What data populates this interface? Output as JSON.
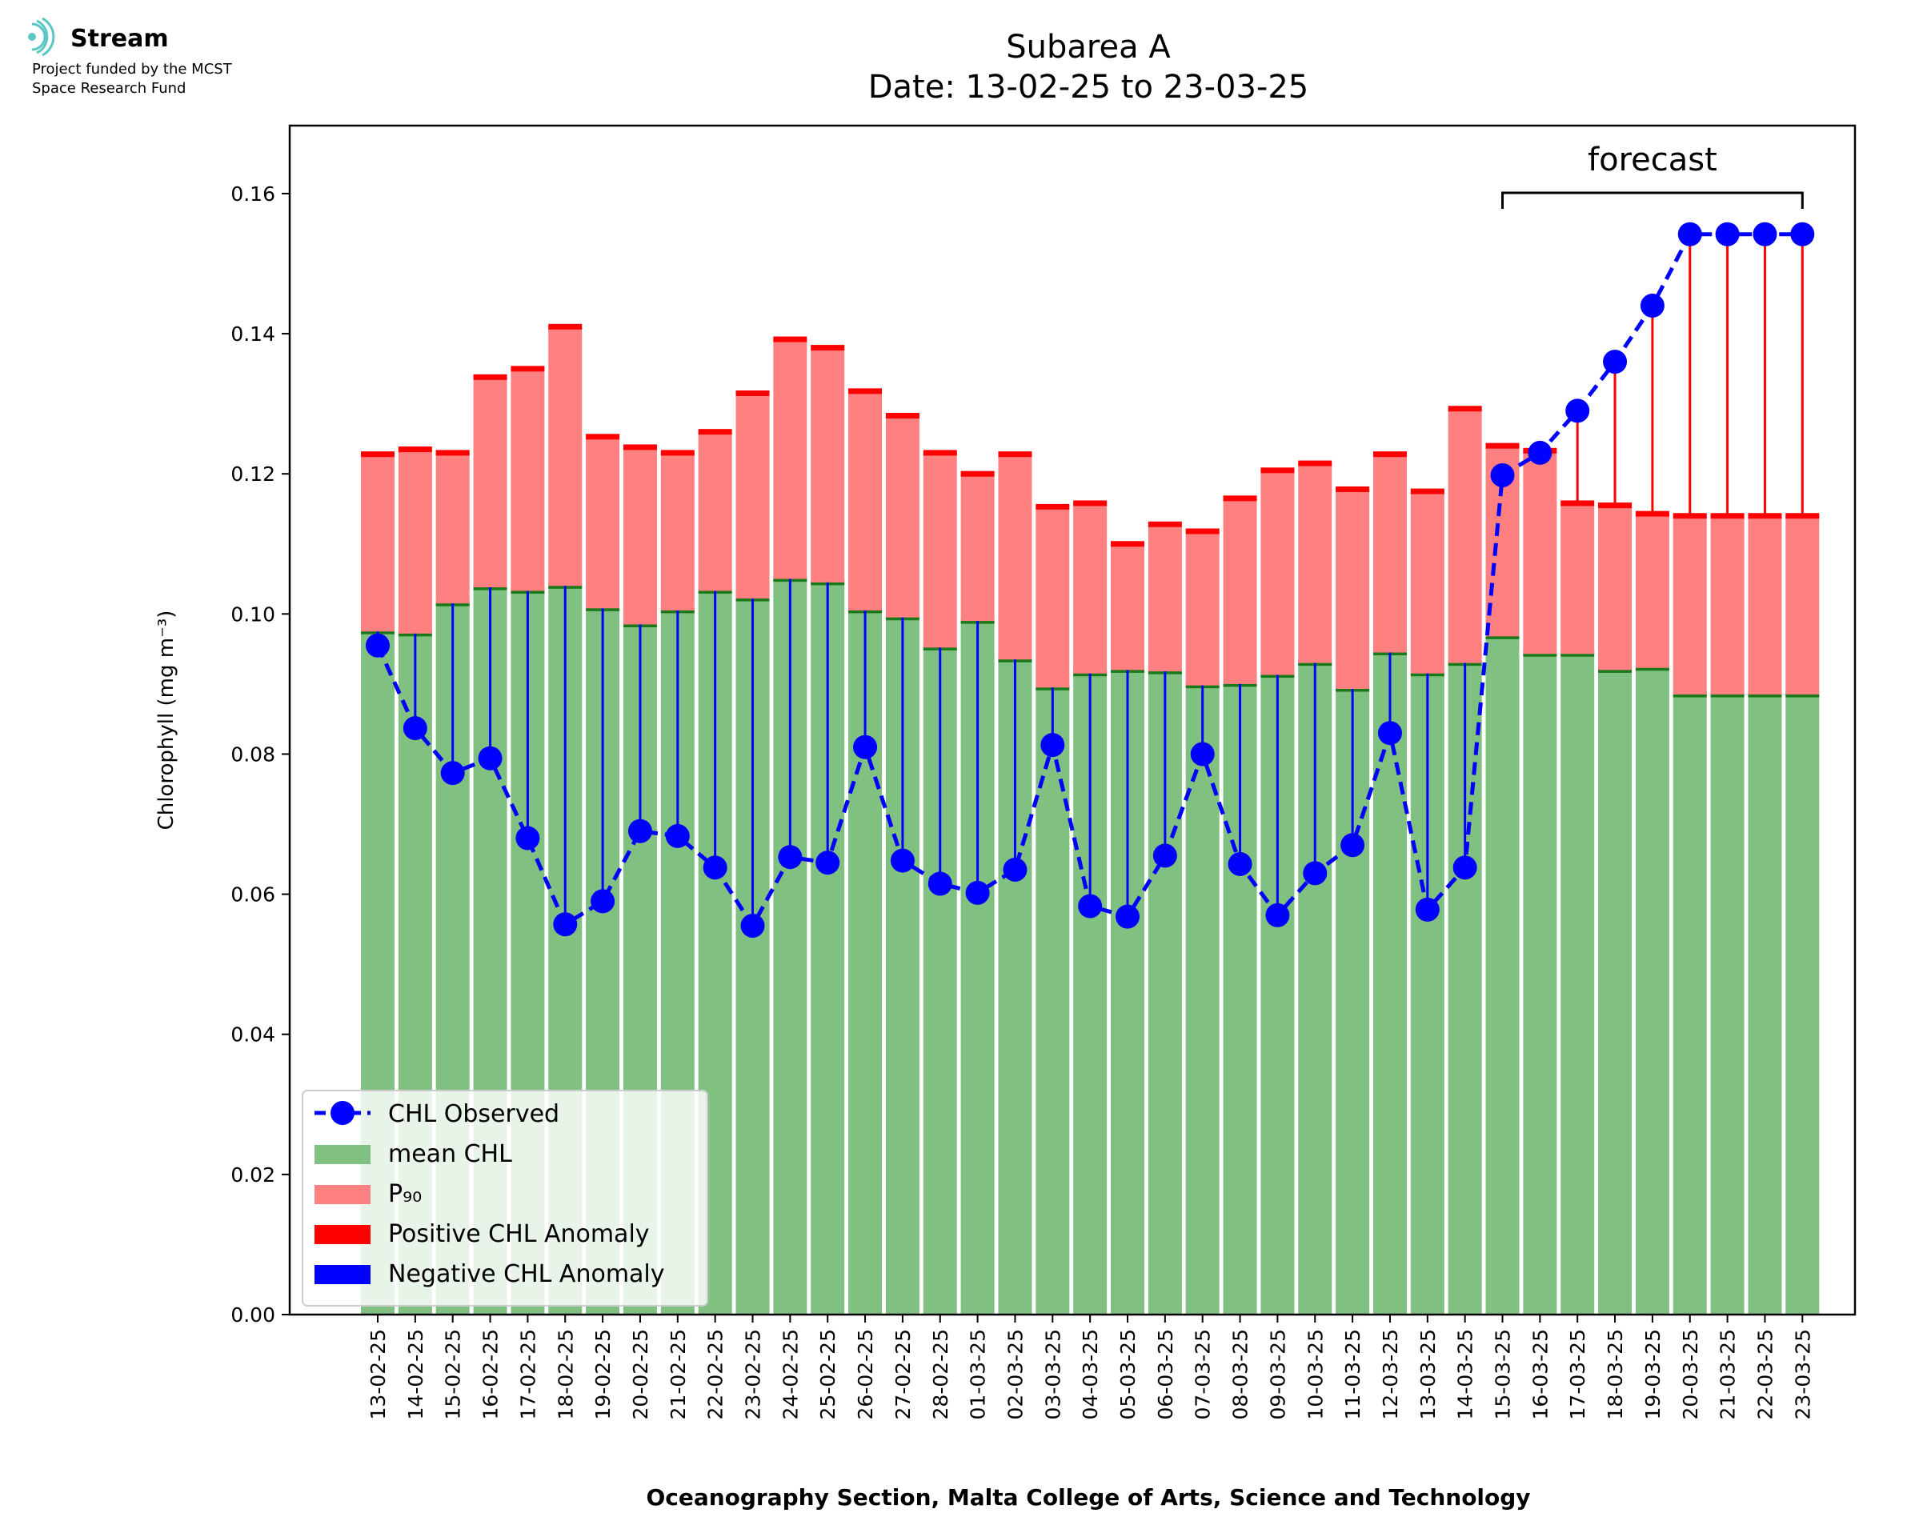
{
  "logo": {
    "name": "Stream",
    "subtitle_line1": "Project funded by the MCST",
    "subtitle_line2": "Space Research Fund"
  },
  "chart_data": {
    "type": "bar",
    "title_line1": "Subarea A",
    "title_line2": "Date: 13-02-25 to 23-03-25",
    "xlabel": "Oceanography Section, Malta College of Arts, Science and Technology",
    "ylabel": "Chlorophyll (mg m⁻³)",
    "ylim": [
      0,
      0.1697
    ],
    "yticks": [
      0.0,
      0.02,
      0.04,
      0.06,
      0.08,
      0.1,
      0.12,
      0.14,
      0.16
    ],
    "ytick_labels": [
      "0.00",
      "0.02",
      "0.04",
      "0.06",
      "0.08",
      "0.10",
      "0.12",
      "0.14",
      "0.16"
    ],
    "categories": [
      "13-02-25",
      "14-02-25",
      "15-02-25",
      "16-02-25",
      "17-02-25",
      "18-02-25",
      "19-02-25",
      "20-02-25",
      "21-02-25",
      "22-02-25",
      "23-02-25",
      "24-02-25",
      "25-02-25",
      "26-02-25",
      "27-02-25",
      "28-02-25",
      "01-03-25",
      "02-03-25",
      "03-03-25",
      "04-03-25",
      "05-03-25",
      "06-03-25",
      "07-03-25",
      "08-03-25",
      "09-03-25",
      "10-03-25",
      "11-03-25",
      "12-03-25",
      "13-03-25",
      "14-03-25",
      "15-03-25",
      "16-03-25",
      "17-03-25",
      "18-03-25",
      "19-03-25",
      "20-03-25",
      "21-03-25",
      "22-03-25",
      "23-03-25"
    ],
    "series": [
      {
        "name": "mean CHL",
        "color": "#80c080",
        "edge_color": "#1a7a1a",
        "values": [
          0.0975,
          0.0972,
          0.1015,
          0.1038,
          0.1033,
          0.104,
          0.1008,
          0.0985,
          0.1005,
          0.1033,
          0.1022,
          0.105,
          0.1045,
          0.1005,
          0.0995,
          0.0952,
          0.099,
          0.0935,
          0.0895,
          0.0915,
          0.092,
          0.0918,
          0.0898,
          0.09,
          0.0913,
          0.093,
          0.0893,
          0.0945,
          0.0915,
          0.093,
          0.0968,
          0.0943,
          0.0943,
          0.092,
          0.0923,
          0.0885,
          0.0885,
          0.0885,
          0.0885
        ]
      },
      {
        "name": "P₉₀",
        "color": "#ff8080",
        "edge_color": "#ff0000",
        "values": [
          0.1228,
          0.1235,
          0.123,
          0.1338,
          0.135,
          0.141,
          0.1253,
          0.1238,
          0.123,
          0.126,
          0.1315,
          0.1392,
          0.138,
          0.1318,
          0.1283,
          0.123,
          0.12,
          0.1228,
          0.1153,
          0.1158,
          0.11,
          0.1128,
          0.1118,
          0.1165,
          0.1205,
          0.1215,
          0.1178,
          0.1228,
          0.1175,
          0.1293,
          0.124,
          0.1233,
          0.1158,
          0.1155,
          0.1143,
          0.114,
          0.114,
          0.114,
          0.114
        ]
      },
      {
        "name": "CHL Observed",
        "color": "#0000ff",
        "values": [
          0.0955,
          0.0837,
          0.0773,
          0.0794,
          0.068,
          0.0557,
          0.059,
          0.069,
          0.0683,
          0.0638,
          0.0555,
          0.0653,
          0.0645,
          0.081,
          0.0648,
          0.0615,
          0.0602,
          0.0635,
          0.0813,
          0.0583,
          0.0568,
          0.0655,
          0.08,
          0.0643,
          0.057,
          0.063,
          0.067,
          0.083,
          0.0578,
          0.0638,
          0.1198,
          0.123,
          0.129,
          0.136,
          0.144,
          0.1542,
          0.1542,
          0.1542,
          0.1542
        ]
      }
    ],
    "anomaly_legend": [
      {
        "name": "Positive CHL Anomaly",
        "color": "#ff0000"
      },
      {
        "name": "Negative CHL Anomaly",
        "color": "#0000ff"
      }
    ],
    "forecast": {
      "label": "forecast",
      "start": "15-03-25",
      "end": "23-03-25"
    },
    "legend_position": "lower-left",
    "grid": false
  }
}
